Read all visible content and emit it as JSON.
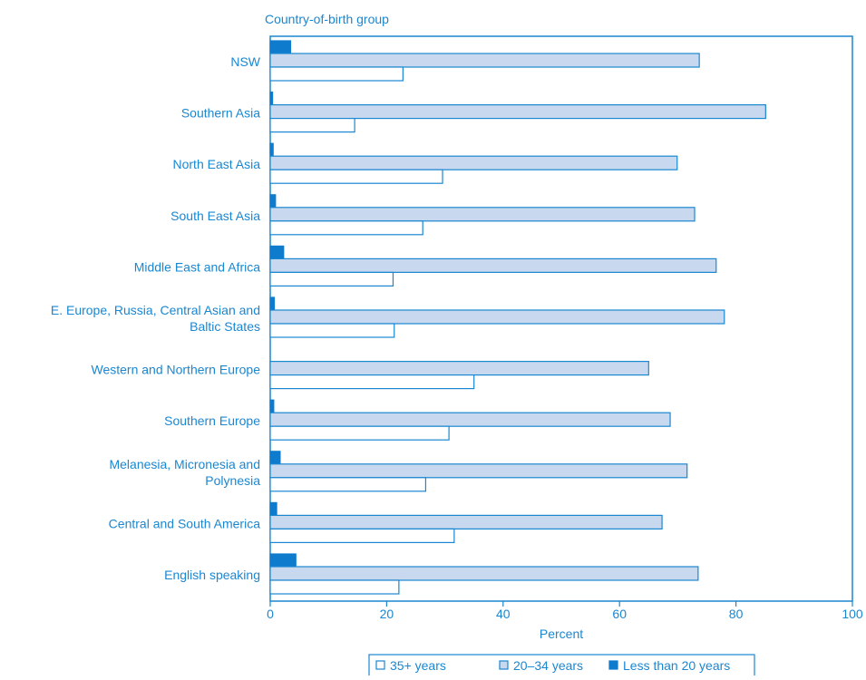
{
  "chart_data": {
    "type": "bar",
    "orientation": "horizontal",
    "ylabel": "Country-of-birth group",
    "xlabel": "Percent",
    "xlim": [
      0,
      100
    ],
    "xticks": [
      0,
      20,
      40,
      60,
      80,
      100
    ],
    "grid": false,
    "legend_position": "bottom",
    "categories": [
      "NSW",
      "Southern Asia",
      "North East Asia",
      "South East Asia",
      "Middle East and Africa",
      "E. Europe, Russia, Central Asian and Baltic States",
      "Western and Northern Europe",
      "Southern Europe",
      "Melanesia, Micronesia and Polynesia",
      "Central and South America",
      "English speaking"
    ],
    "category_lines": [
      [
        "NSW"
      ],
      [
        "Southern Asia"
      ],
      [
        "North East Asia"
      ],
      [
        "South East Asia"
      ],
      [
        "Middle East and Africa"
      ],
      [
        "E. Europe, Russia, Central Asian and",
        "Baltic States"
      ],
      [
        "Western and Northern Europe"
      ],
      [
        "Southern Europe"
      ],
      [
        "Melanesia, Micronesia and",
        "Polynesia"
      ],
      [
        "Central and South America"
      ],
      [
        "English speaking"
      ]
    ],
    "series": [
      {
        "name": "Less than 20 years",
        "style": "solid",
        "values": [
          3.5,
          0.4,
          0.5,
          0.9,
          2.3,
          0.7,
          0.0,
          0.6,
          1.7,
          1.1,
          4.4
        ]
      },
      {
        "name": "20–34 years",
        "style": "shaded",
        "values": [
          73.7,
          85.1,
          69.9,
          72.9,
          76.6,
          78.0,
          65.0,
          68.7,
          71.6,
          67.3,
          73.5
        ]
      },
      {
        "name": "35+ years",
        "style": "open",
        "values": [
          22.8,
          14.5,
          29.6,
          26.2,
          21.1,
          21.3,
          35.0,
          30.7,
          26.7,
          31.6,
          22.1
        ]
      }
    ],
    "legend_order": [
      "35+ years",
      "20–34 years",
      "Less than 20 years"
    ]
  },
  "colors": {
    "accent": "#1A87D1",
    "text": "#1A87D1",
    "solid_fill": "#0E7BCD",
    "shaded_fill": "#C8D8EE",
    "open_fill": "#FFFFFF",
    "background": "#FFFFFF"
  }
}
